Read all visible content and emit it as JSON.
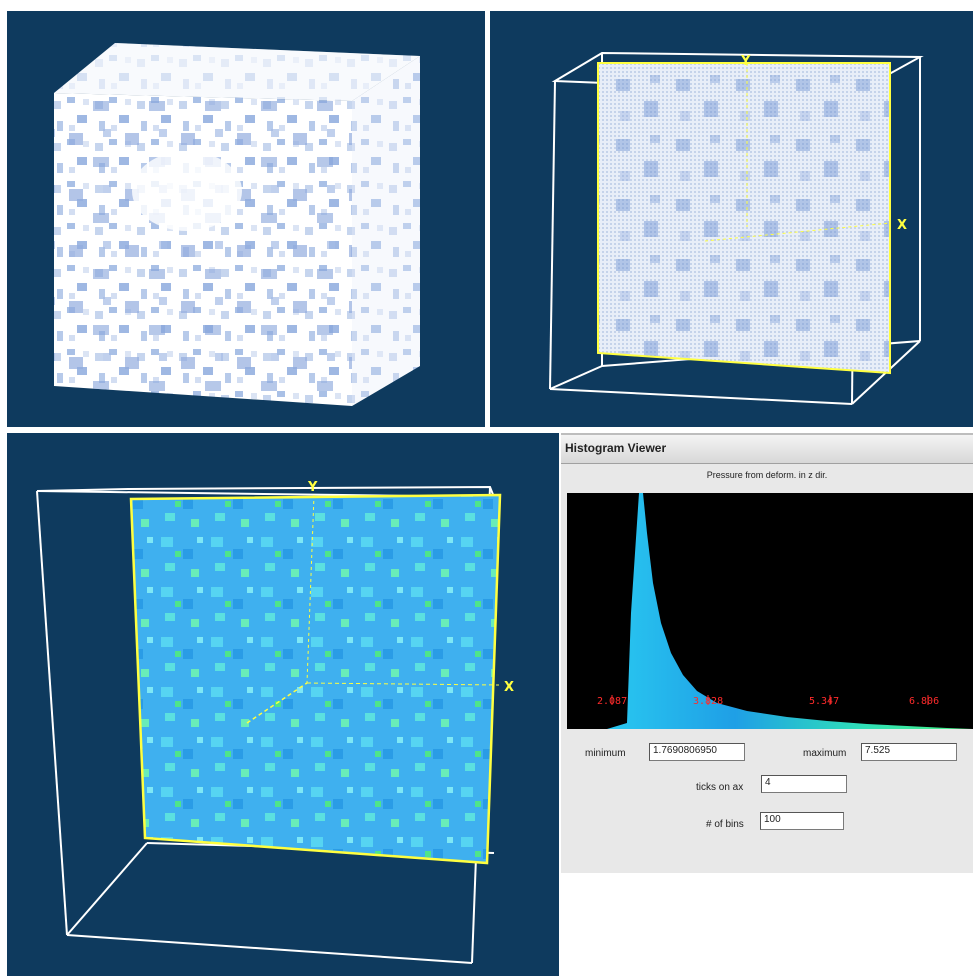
{
  "volume_views": {
    "axis_x": "X",
    "axis_y": "Y"
  },
  "histogram_viewer": {
    "title": "Histogram Viewer",
    "caption": "Pressure from deform. in z dir.",
    "tick_labels": [
      "2.087",
      "3.828",
      "5.347",
      "6.806"
    ],
    "minimum_label": "minimum",
    "minimum_value": "1.7690806950",
    "maximum_label": "maximum",
    "maximum_value": "7.525",
    "ticks_label": "ticks on ax",
    "ticks_value": "4",
    "bins_label": "# of bins",
    "bins_value": "100"
  },
  "colors": {
    "background": "#0e3a5e",
    "highlight": "#ffff40",
    "ticks": "#ff2b2b"
  }
}
